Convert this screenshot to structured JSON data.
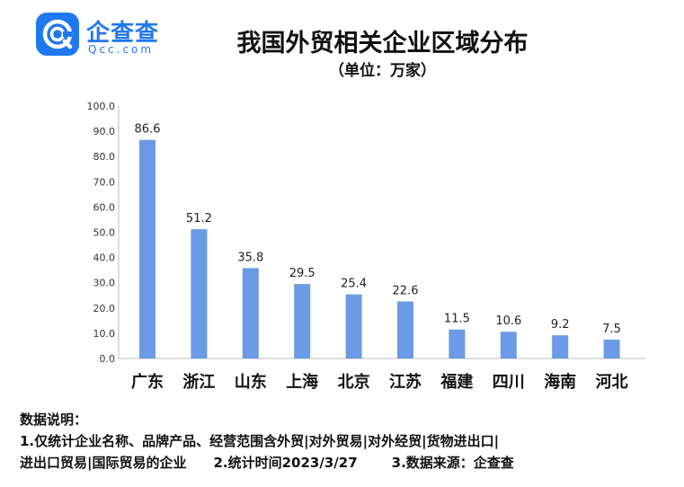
{
  "logo": {
    "name": "企查查",
    "domain": "Qcc.com",
    "brand_color": "#1f78f0"
  },
  "title": "我国外贸相关企业区域分布",
  "subtitle": "（单位：万家）",
  "chart_data": {
    "type": "bar",
    "title": "我国外贸相关企业区域分布",
    "subtitle": "（单位：万家）",
    "categories": [
      "广东",
      "浙江",
      "山东",
      "上海",
      "北京",
      "江苏",
      "福建",
      "四川",
      "海南",
      "河北"
    ],
    "values": [
      86.6,
      51.2,
      35.8,
      29.5,
      25.4,
      22.6,
      11.5,
      10.6,
      9.2,
      7.5
    ],
    "value_labels": [
      "86.6",
      "51.2",
      "35.8",
      "29.5",
      "25.4",
      "22.6",
      "11.5",
      "10.6",
      "9.2",
      "7.5"
    ],
    "yticks": [
      "0.0",
      "10.0",
      "20.0",
      "30.0",
      "40.0",
      "50.0",
      "60.0",
      "70.0",
      "80.0",
      "90.0",
      "100.0"
    ],
    "ylim": [
      0,
      100
    ],
    "bar_color": "#6b9be6",
    "grid": false,
    "legend": "none"
  },
  "notes": {
    "heading": "数据说明：",
    "item1_line1": "1.仅统计企业名称、品牌产品、经营范围含外贸|对外贸易|对外经贸|货物进出口|",
    "item1_line2": "进出口贸易|国际贸易的企业",
    "item2": "2.统计时间2023/3/27",
    "item3": "3.数据来源：企查查"
  }
}
